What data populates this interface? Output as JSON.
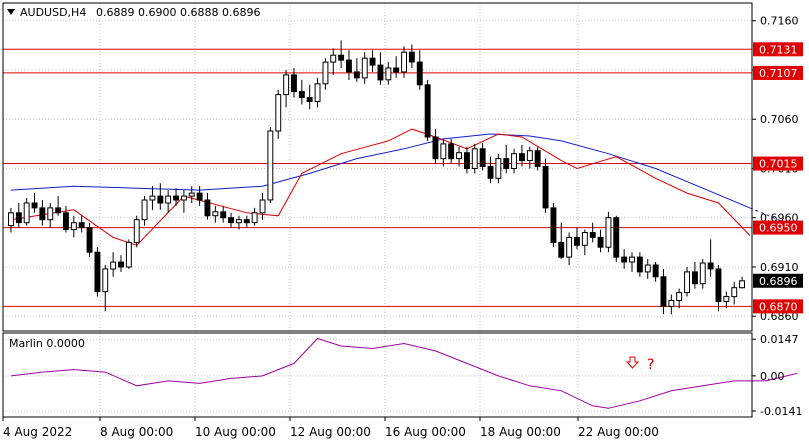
{
  "header": {
    "menu_icon": "triangle-down-icon",
    "symbol": "AUDUSD,H4",
    "ohlc": "0.6889 0.6900 0.6888 0.6896"
  },
  "indicator": {
    "label": "Marlin 0.0000",
    "annotation_arrow": "down-outline-arrow-icon",
    "annotation_mark": "?"
  },
  "colors": {
    "background": "#ffffff",
    "grid": "#c8c8c8",
    "frame": "#000000",
    "candle": "#000000",
    "level_line": "#e00000",
    "ma_fast": "#e00000",
    "ma_slow": "#1020d0",
    "oscillator": "#a000a0",
    "annotation": "#e00000"
  },
  "chart_data": [
    {
      "type": "candlestick",
      "title": "AUDUSD,H4",
      "ylim": [
        0.6845,
        0.7178
      ],
      "y_ticks": [
        0.716,
        0.711,
        0.706,
        0.701,
        0.696,
        0.691,
        0.686
      ],
      "x_ticks": [
        "4 Aug 2022",
        "8 Aug 00:00",
        "10 Aug 00:00",
        "12 Aug 00:00",
        "16 Aug 00:00",
        "18 Aug 00:00",
        "22 Aug 00:00"
      ],
      "last_price": "0.6896",
      "horizontal_levels": [
        {
          "value": 0.7131,
          "label": "0.7131"
        },
        {
          "value": 0.7107,
          "label": "0.7107"
        },
        {
          "value": 0.7015,
          "label": "0.7015"
        },
        {
          "value": 0.695,
          "label": "0.6950"
        },
        {
          "value": 0.687,
          "label": "0.6870"
        }
      ],
      "candles": [
        [
          0.6952,
          0.697,
          0.6945,
          0.6965
        ],
        [
          0.6965,
          0.6975,
          0.695,
          0.6955
        ],
        [
          0.6955,
          0.698,
          0.6952,
          0.6975
        ],
        [
          0.6975,
          0.6985,
          0.6965,
          0.697
        ],
        [
          0.697,
          0.6978,
          0.6952,
          0.6958
        ],
        [
          0.6958,
          0.6975,
          0.695,
          0.697
        ],
        [
          0.697,
          0.6982,
          0.6962,
          0.6965
        ],
        [
          0.6965,
          0.6972,
          0.6945,
          0.6948
        ],
        [
          0.6948,
          0.6962,
          0.694,
          0.6955
        ],
        [
          0.6955,
          0.6962,
          0.6945,
          0.695
        ],
        [
          0.695,
          0.6955,
          0.692,
          0.6925
        ],
        [
          0.6925,
          0.693,
          0.688,
          0.6885
        ],
        [
          0.6885,
          0.6912,
          0.6865,
          0.6908
        ],
        [
          0.6908,
          0.6925,
          0.69,
          0.6915
        ],
        [
          0.6915,
          0.6922,
          0.6905,
          0.691
        ],
        [
          0.691,
          0.6938,
          0.6908,
          0.6935
        ],
        [
          0.6935,
          0.6962,
          0.693,
          0.6958
        ],
        [
          0.6958,
          0.6982,
          0.6952,
          0.6978
        ],
        [
          0.6978,
          0.6992,
          0.6968,
          0.6982
        ],
        [
          0.6982,
          0.6995,
          0.6968,
          0.6975
        ],
        [
          0.6975,
          0.6988,
          0.6965,
          0.6982
        ],
        [
          0.6982,
          0.699,
          0.6972,
          0.6978
        ],
        [
          0.6978,
          0.6988,
          0.6965,
          0.6982
        ],
        [
          0.6982,
          0.6992,
          0.6975,
          0.6985
        ],
        [
          0.6985,
          0.6992,
          0.6972,
          0.6978
        ],
        [
          0.6978,
          0.6985,
          0.6958,
          0.6962
        ],
        [
          0.6962,
          0.6972,
          0.6955,
          0.6966
        ],
        [
          0.6966,
          0.6972,
          0.6955,
          0.696
        ],
        [
          0.696,
          0.6965,
          0.695,
          0.6955
        ],
        [
          0.6955,
          0.6962,
          0.6948,
          0.6958
        ],
        [
          0.6958,
          0.6962,
          0.695,
          0.6955
        ],
        [
          0.6955,
          0.697,
          0.6952,
          0.6965
        ],
        [
          0.6965,
          0.6985,
          0.6958,
          0.6978
        ],
        [
          0.6978,
          0.7052,
          0.6975,
          0.7048
        ],
        [
          0.7048,
          0.709,
          0.704,
          0.7085
        ],
        [
          0.7085,
          0.711,
          0.7072,
          0.7105
        ],
        [
          0.7105,
          0.7112,
          0.7082,
          0.7088
        ],
        [
          0.7088,
          0.71,
          0.7075,
          0.7082
        ],
        [
          0.7082,
          0.7095,
          0.707,
          0.7078
        ],
        [
          0.7078,
          0.7102,
          0.7072,
          0.7096
        ],
        [
          0.7096,
          0.7122,
          0.709,
          0.7118
        ],
        [
          0.7118,
          0.7132,
          0.7105,
          0.7125
        ],
        [
          0.7125,
          0.714,
          0.7112,
          0.712
        ],
        [
          0.712,
          0.713,
          0.71,
          0.7108
        ],
        [
          0.7108,
          0.7122,
          0.7098,
          0.7102
        ],
        [
          0.7102,
          0.7128,
          0.7096,
          0.7122
        ],
        [
          0.7122,
          0.713,
          0.7108,
          0.7115
        ],
        [
          0.7115,
          0.7128,
          0.7095,
          0.71
        ],
        [
          0.71,
          0.7118,
          0.7095,
          0.7112
        ],
        [
          0.7112,
          0.7124,
          0.7102,
          0.7108
        ],
        [
          0.7108,
          0.7134,
          0.7102,
          0.7128
        ],
        [
          0.7128,
          0.7136,
          0.7112,
          0.7118
        ],
        [
          0.7118,
          0.713,
          0.709,
          0.7095
        ],
        [
          0.7095,
          0.71,
          0.7038,
          0.7042
        ],
        [
          0.7042,
          0.705,
          0.7015,
          0.702
        ],
        [
          0.702,
          0.704,
          0.7012,
          0.7035
        ],
        [
          0.7035,
          0.704,
          0.7015,
          0.702
        ],
        [
          0.702,
          0.7032,
          0.7012,
          0.7026
        ],
        [
          0.7026,
          0.7032,
          0.7005,
          0.701
        ],
        [
          0.701,
          0.7035,
          0.7005,
          0.703
        ],
        [
          0.703,
          0.7036,
          0.7008,
          0.7012
        ],
        [
          0.7012,
          0.7022,
          0.6995,
          0.7
        ],
        [
          0.7,
          0.7025,
          0.6995,
          0.702
        ],
        [
          0.702,
          0.7034,
          0.7005,
          0.701
        ],
        [
          0.701,
          0.703,
          0.7005,
          0.7025
        ],
        [
          0.7025,
          0.7034,
          0.7012,
          0.7018
        ],
        [
          0.7018,
          0.7032,
          0.701,
          0.7028
        ],
        [
          0.7028,
          0.7032,
          0.7008,
          0.7012
        ],
        [
          0.7012,
          0.702,
          0.6965,
          0.697
        ],
        [
          0.697,
          0.6975,
          0.693,
          0.6935
        ],
        [
          0.6935,
          0.6955,
          0.6918,
          0.692
        ],
        [
          0.692,
          0.6945,
          0.6912,
          0.694
        ],
        [
          0.694,
          0.695,
          0.6928,
          0.6932
        ],
        [
          0.6932,
          0.6948,
          0.6922,
          0.6945
        ],
        [
          0.6945,
          0.6955,
          0.6935,
          0.694
        ],
        [
          0.694,
          0.6948,
          0.6925,
          0.693
        ],
        [
          0.693,
          0.6966,
          0.6925,
          0.696
        ],
        [
          0.696,
          0.6962,
          0.6915,
          0.692
        ],
        [
          0.692,
          0.6928,
          0.6908,
          0.6915
        ],
        [
          0.6915,
          0.6925,
          0.6905,
          0.692
        ],
        [
          0.692,
          0.6925,
          0.69,
          0.6905
        ],
        [
          0.6905,
          0.6918,
          0.6898,
          0.6912
        ],
        [
          0.6912,
          0.6915,
          0.6895,
          0.69
        ],
        [
          0.69,
          0.6908,
          0.6862,
          0.687
        ],
        [
          0.687,
          0.6882,
          0.6862,
          0.6876
        ],
        [
          0.6876,
          0.6888,
          0.6868,
          0.6884
        ],
        [
          0.6884,
          0.691,
          0.688,
          0.6905
        ],
        [
          0.6905,
          0.6915,
          0.6888,
          0.6893
        ],
        [
          0.6893,
          0.6918,
          0.6888,
          0.6914
        ],
        [
          0.6914,
          0.6938,
          0.69,
          0.6908
        ],
        [
          0.6908,
          0.6912,
          0.6865,
          0.6875
        ],
        [
          0.6875,
          0.6885,
          0.6868,
          0.688
        ],
        [
          0.688,
          0.6895,
          0.6872,
          0.6889
        ],
        [
          0.6889,
          0.69,
          0.6888,
          0.6896
        ]
      ],
      "ma_fast": [
        [
          0,
          0.6958
        ],
        [
          8,
          0.6968
        ],
        [
          13,
          0.694
        ],
        [
          16,
          0.6932
        ],
        [
          22,
          0.6982
        ],
        [
          30,
          0.6965
        ],
        [
          34,
          0.6962
        ],
        [
          37,
          0.7005
        ],
        [
          42,
          0.7025
        ],
        [
          48,
          0.7038
        ],
        [
          51,
          0.705
        ],
        [
          54,
          0.7042
        ],
        [
          58,
          0.703
        ],
        [
          62,
          0.7045
        ],
        [
          65,
          0.7042
        ],
        [
          70,
          0.7018
        ],
        [
          72,
          0.701
        ],
        [
          77,
          0.7022
        ],
        [
          82,
          0.7
        ],
        [
          86,
          0.6985
        ],
        [
          90,
          0.6975
        ],
        [
          94,
          0.6942
        ]
      ],
      "ma_slow": [
        [
          0,
          0.6988
        ],
        [
          8,
          0.6992
        ],
        [
          16,
          0.699
        ],
        [
          24,
          0.6988
        ],
        [
          32,
          0.6992
        ],
        [
          38,
          0.7005
        ],
        [
          44,
          0.702
        ],
        [
          50,
          0.703
        ],
        [
          55,
          0.704
        ],
        [
          61,
          0.7045
        ],
        [
          66,
          0.7043
        ],
        [
          70,
          0.7038
        ],
        [
          76,
          0.7025
        ],
        [
          82,
          0.701
        ],
        [
          88,
          0.699
        ],
        [
          94,
          0.697
        ]
      ],
      "ma_slow_projection": [
        [
          94,
          0.697
        ],
        [
          100,
          0.695
        ]
      ]
    },
    {
      "type": "line",
      "title": "Marlin 0.0000",
      "ylim": [
        -0.0165,
        0.0172
      ],
      "y_ticks": [
        {
          "value": 0.0147,
          "label": "0.0147"
        },
        {
          "value": 0.0,
          "label": "0.00"
        },
        {
          "value": -0.0141,
          "label": "-0.0141"
        }
      ],
      "series": [
        {
          "values": [
            [
              0,
              0.0
            ],
            [
              4,
              0.0015
            ],
            [
              8,
              0.0025
            ],
            [
              12,
              0.0015
            ],
            [
              16,
              -0.004
            ],
            [
              20,
              -0.002
            ],
            [
              24,
              -0.003
            ],
            [
              28,
              -0.001
            ],
            [
              32,
              0.0
            ],
            [
              36,
              0.005
            ],
            [
              39,
              0.015
            ],
            [
              42,
              0.012
            ],
            [
              46,
              0.011
            ],
            [
              50,
              0.013
            ],
            [
              54,
              0.01
            ],
            [
              58,
              0.005
            ],
            [
              62,
              0.0
            ],
            [
              66,
              -0.004
            ],
            [
              70,
              -0.006
            ],
            [
              74,
              -0.012
            ],
            [
              76,
              -0.013
            ],
            [
              80,
              -0.01
            ],
            [
              84,
              -0.006
            ],
            [
              88,
              -0.004
            ],
            [
              92,
              -0.002
            ],
            [
              96,
              -0.002
            ],
            [
              100,
              0.001
            ]
          ]
        }
      ]
    }
  ]
}
